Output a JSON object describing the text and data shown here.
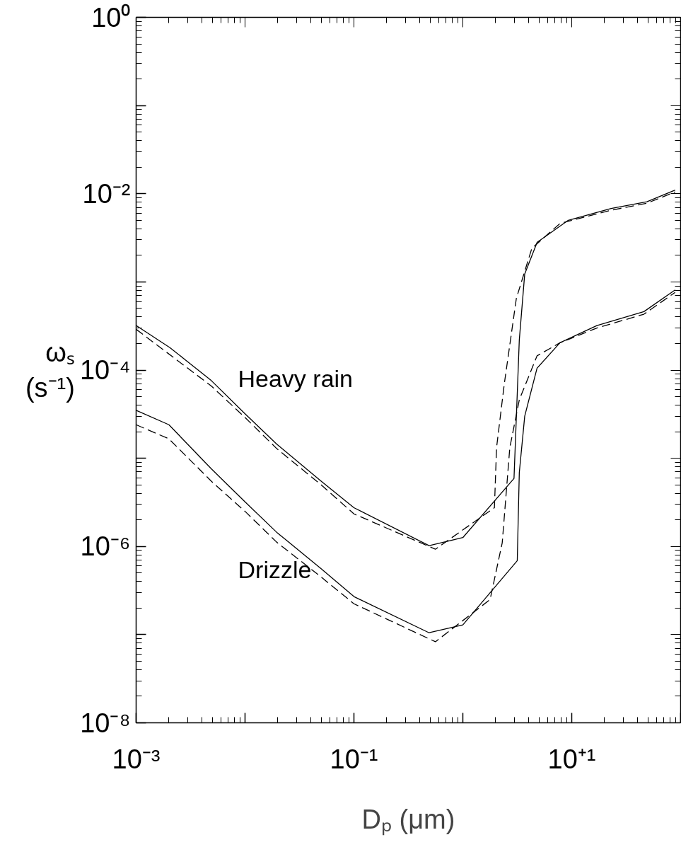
{
  "chart_data": {
    "type": "line",
    "xlabel": "Dₚ (μm)",
    "ylabel": "ωₛ (s⁻¹)",
    "log": "xy",
    "xlim": [
      0.001,
      100
    ],
    "ylim": [
      1e-08,
      1
    ],
    "xticks": [
      {
        "value": 0.001,
        "label": "10⁻³"
      },
      {
        "value": 0.01,
        "label": null
      },
      {
        "value": 0.1,
        "label": "10⁻¹"
      },
      {
        "value": 1,
        "label": null
      },
      {
        "value": 10,
        "label": "10⁺¹"
      },
      {
        "value": 100,
        "label": null
      }
    ],
    "yticks": [
      {
        "value": 1e-08,
        "label": "10⁻⁸"
      },
      {
        "value": 1e-07,
        "label": null
      },
      {
        "value": 1e-06,
        "label": "10⁻⁶"
      },
      {
        "value": 1e-05,
        "label": null
      },
      {
        "value": 0.0001,
        "label": "10⁻⁴"
      },
      {
        "value": 0.001,
        "label": null
      },
      {
        "value": 0.01,
        "label": "10⁻²"
      },
      {
        "value": 0.1,
        "label": null
      },
      {
        "value": 1,
        "label": "10⁰"
      }
    ],
    "grid": false,
    "marker": "none",
    "series": [
      {
        "color": "#000000",
        "line_style": "solid",
        "x": [
          0.001,
          0.00204,
          0.0049,
          0.01,
          0.0195,
          0.05,
          0.1,
          0.49,
          1.0,
          2.95,
          3.3,
          3.7,
          4.8,
          9.3,
          23,
          49,
          89
        ],
        "values": [
          0.00032,
          0.00018,
          7.6e-05,
          3.2e-05,
          1.45e-05,
          5.5e-06,
          2.75e-06,
          1.02e-06,
          1.26e-06,
          5.9e-06,
          0.00022,
          0.00123,
          0.0028,
          0.005,
          0.0068,
          0.0081,
          0.011
        ]
      },
      {
        "color": "#000000",
        "line_style": "dashed",
        "x": [
          0.001,
          0.0049,
          0.01,
          0.0195,
          0.05,
          0.1,
          0.56,
          1.95,
          2.04,
          2.4,
          3.1,
          4.3,
          7.8,
          23,
          49,
          89
        ],
        "values": [
          0.00029,
          6.6e-05,
          2.9e-05,
          1.29e-05,
          5e-06,
          2.34e-06,
          9.3e-07,
          2.75e-06,
          1.32e-05,
          6.9e-05,
          0.00065,
          0.0024,
          0.0046,
          0.0065,
          0.0078,
          0.0105
        ]
      },
      {
        "color": "#000000",
        "line_style": "solid",
        "x": [
          0.001,
          0.002,
          0.0049,
          0.01,
          0.0195,
          0.05,
          0.1,
          0.49,
          1.0,
          3.16,
          3.3,
          3.7,
          4.8,
          7.8,
          17,
          46,
          89
        ],
        "values": [
          3.5e-05,
          2.4e-05,
          7.6e-06,
          3.2e-06,
          1.45e-06,
          5.6e-07,
          2.7e-07,
          1.05e-07,
          1.29e-07,
          6.9e-07,
          6.9e-06,
          3e-05,
          0.000105,
          0.000204,
          0.00032,
          0.00046,
          0.00081
        ]
      },
      {
        "color": "#000000",
        "line_style": "dashed",
        "x": [
          0.001,
          0.002,
          0.0049,
          0.01,
          0.0195,
          0.05,
          0.1,
          0.56,
          1.78,
          2.3,
          2.7,
          3.3,
          4.8,
          7.8,
          17,
          46,
          89
        ],
        "values": [
          2.4e-05,
          1.66e-05,
          5.5e-06,
          2.5e-06,
          1.12e-06,
          4.5e-07,
          2.24e-07,
          8.3e-08,
          2.5e-07,
          1.1e-06,
          1.32e-05,
          4.6e-05,
          0.000145,
          0.000204,
          0.0003,
          0.00043,
          0.00076
        ]
      }
    ],
    "annotations": [
      "Heavy rain",
      "Drizzle"
    ]
  }
}
